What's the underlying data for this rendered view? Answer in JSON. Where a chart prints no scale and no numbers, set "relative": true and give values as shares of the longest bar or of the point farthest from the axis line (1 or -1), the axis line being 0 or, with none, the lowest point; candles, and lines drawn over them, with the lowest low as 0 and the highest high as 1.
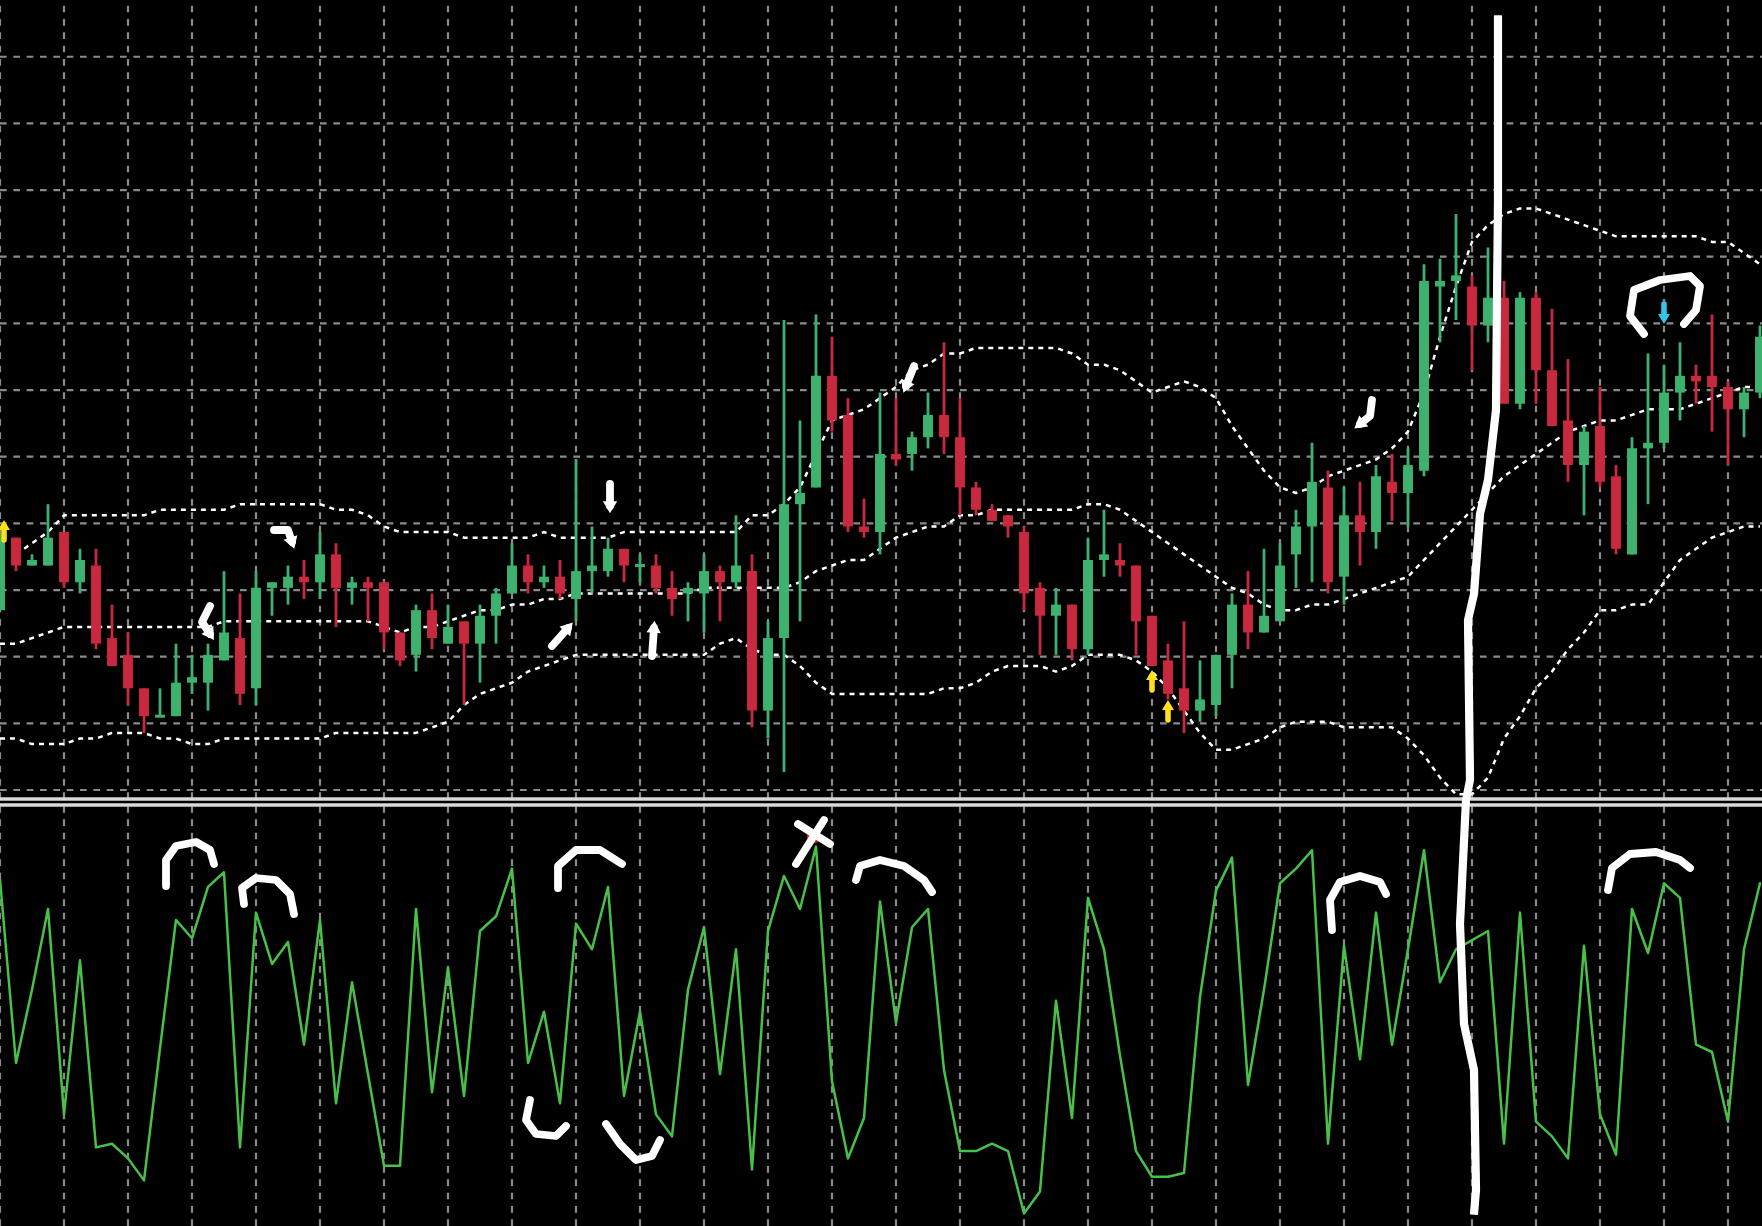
{
  "chart_data": [
    {
      "type": "candlestick",
      "relative": true,
      "grid": true,
      "categories": [
        null,
        null,
        null,
        null,
        null,
        null,
        null,
        null,
        null,
        null,
        null,
        null,
        null,
        null,
        null,
        null,
        null,
        null,
        null,
        null,
        null,
        null,
        null,
        null,
        null,
        null,
        null,
        null,
        null,
        null,
        null,
        null,
        null,
        null,
        null,
        null,
        null,
        null,
        null,
        null,
        null,
        null,
        null,
        null,
        null,
        null,
        null,
        null,
        null,
        null,
        null,
        null,
        null,
        null,
        null,
        null,
        null,
        null,
        null,
        null,
        null,
        null,
        null,
        null,
        null,
        null,
        null,
        null,
        null,
        null,
        null,
        null,
        null,
        null,
        null,
        null,
        null,
        null,
        null,
        null,
        null,
        null,
        null,
        null,
        null,
        null,
        null,
        null,
        null,
        null,
        null,
        null,
        null,
        null,
        null,
        null,
        null,
        null,
        null,
        null,
        null,
        null,
        null,
        null,
        null,
        null,
        null,
        null,
        null,
        null,
        null
      ],
      "ohlc": [
        [
          0.29,
          0.43,
          0.29,
          0.42
        ],
        [
          0.42,
          0.42,
          0.36,
          0.37
        ],
        [
          0.37,
          0.39,
          0.37,
          0.38
        ],
        [
          0.37,
          0.48,
          0.37,
          0.42
        ],
        [
          0.43,
          0.43,
          0.33,
          0.34
        ],
        [
          0.34,
          0.4,
          0.32,
          0.38
        ],
        [
          0.37,
          0.4,
          0.22,
          0.23
        ],
        [
          0.24,
          0.3,
          0.19,
          0.19
        ],
        [
          0.21,
          0.25,
          0.12,
          0.15
        ],
        [
          0.15,
          0.15,
          0.07,
          0.1
        ],
        [
          0.1,
          0.15,
          0.1,
          0.1
        ],
        [
          0.1,
          0.23,
          0.1,
          0.16
        ],
        [
          0.16,
          0.21,
          0.14,
          0.17
        ],
        [
          0.16,
          0.23,
          0.11,
          0.21
        ],
        [
          0.2,
          0.36,
          0.2,
          0.25
        ],
        [
          0.24,
          0.32,
          0.12,
          0.14
        ],
        [
          0.15,
          0.36,
          0.12,
          0.33
        ],
        [
          0.33,
          0.34,
          0.28,
          0.34
        ],
        [
          0.33,
          0.37,
          0.3,
          0.35
        ],
        [
          0.35,
          0.38,
          0.31,
          0.34
        ],
        [
          0.34,
          0.43,
          0.31,
          0.39
        ],
        [
          0.39,
          0.41,
          0.26,
          0.33
        ],
        [
          0.33,
          0.35,
          0.3,
          0.34
        ],
        [
          0.34,
          0.35,
          0.27,
          0.33
        ],
        [
          0.34,
          0.34,
          0.22,
          0.25
        ],
        [
          0.25,
          0.25,
          0.19,
          0.2
        ],
        [
          0.21,
          0.3,
          0.18,
          0.29
        ],
        [
          0.29,
          0.32,
          0.22,
          0.24
        ],
        [
          0.23,
          0.3,
          0.23,
          0.26
        ],
        [
          0.27,
          0.27,
          0.12,
          0.23
        ],
        [
          0.23,
          0.3,
          0.16,
          0.28
        ],
        [
          0.28,
          0.33,
          0.23,
          0.32
        ],
        [
          0.32,
          0.41,
          0.32,
          0.37
        ],
        [
          0.37,
          0.39,
          0.32,
          0.34
        ],
        [
          0.34,
          0.37,
          0.33,
          0.35
        ],
        [
          0.35,
          0.38,
          0.31,
          0.32
        ],
        [
          0.31,
          0.56,
          0.27,
          0.36
        ],
        [
          0.36,
          0.44,
          0.32,
          0.37
        ],
        [
          0.36,
          0.42,
          0.35,
          0.4
        ],
        [
          0.4,
          0.4,
          0.34,
          0.37
        ],
        [
          0.37,
          0.39,
          0.34,
          0.37
        ],
        [
          0.37,
          0.39,
          0.32,
          0.33
        ],
        [
          0.33,
          0.36,
          0.28,
          0.31
        ],
        [
          0.32,
          0.34,
          0.27,
          0.33
        ],
        [
          0.32,
          0.39,
          0.25,
          0.36
        ],
        [
          0.36,
          0.37,
          0.27,
          0.34
        ],
        [
          0.34,
          0.46,
          0.33,
          0.37
        ],
        [
          0.36,
          0.39,
          0.08,
          0.11
        ],
        [
          0.11,
          0.27,
          0.06,
          0.24
        ],
        [
          0.24,
          0.81,
          0.0,
          0.48
        ],
        [
          0.48,
          0.63,
          0.27,
          0.5
        ],
        [
          0.51,
          0.82,
          0.51,
          0.71
        ],
        [
          0.71,
          0.78,
          0.61,
          0.63
        ],
        [
          0.64,
          0.67,
          0.43,
          0.44
        ],
        [
          0.44,
          0.49,
          0.42,
          0.43
        ],
        [
          0.43,
          0.68,
          0.39,
          0.57
        ],
        [
          0.57,
          0.67,
          0.55,
          0.56
        ],
        [
          0.57,
          0.61,
          0.54,
          0.6
        ],
        [
          0.6,
          0.68,
          0.58,
          0.64
        ],
        [
          0.64,
          0.77,
          0.57,
          0.6
        ],
        [
          0.6,
          0.67,
          0.46,
          0.51
        ],
        [
          0.51,
          0.52,
          0.46,
          0.47
        ],
        [
          0.47,
          0.48,
          0.45,
          0.45
        ],
        [
          0.46,
          0.46,
          0.42,
          0.44
        ],
        [
          0.43,
          0.44,
          0.29,
          0.32
        ],
        [
          0.33,
          0.34,
          0.21,
          0.28
        ],
        [
          0.28,
          0.33,
          0.21,
          0.3
        ],
        [
          0.3,
          0.3,
          0.2,
          0.22
        ],
        [
          0.22,
          0.42,
          0.21,
          0.38
        ],
        [
          0.38,
          0.47,
          0.35,
          0.39
        ],
        [
          0.38,
          0.41,
          0.35,
          0.37
        ],
        [
          0.37,
          0.37,
          0.21,
          0.27
        ],
        [
          0.28,
          0.28,
          0.19,
          0.19
        ],
        [
          0.2,
          0.23,
          0.13,
          0.14
        ],
        [
          0.15,
          0.27,
          0.07,
          0.11
        ],
        [
          0.11,
          0.2,
          0.09,
          0.13
        ],
        [
          0.12,
          0.21,
          0.1,
          0.21
        ],
        [
          0.21,
          0.32,
          0.15,
          0.3
        ],
        [
          0.3,
          0.36,
          0.22,
          0.25
        ],
        [
          0.25,
          0.4,
          0.25,
          0.28
        ],
        [
          0.27,
          0.41,
          0.27,
          0.37
        ],
        [
          0.39,
          0.47,
          0.33,
          0.44
        ],
        [
          0.44,
          0.59,
          0.34,
          0.52
        ],
        [
          0.51,
          0.54,
          0.32,
          0.34
        ],
        [
          0.35,
          0.51,
          0.3,
          0.46
        ],
        [
          0.46,
          0.52,
          0.37,
          0.43
        ],
        [
          0.43,
          0.55,
          0.4,
          0.53
        ],
        [
          0.52,
          0.57,
          0.45,
          0.5
        ],
        [
          0.5,
          0.58,
          0.44,
          0.55
        ],
        [
          0.54,
          0.91,
          0.53,
          0.88
        ],
        [
          0.87,
          0.92,
          0.77,
          0.88
        ],
        [
          0.88,
          1.0,
          0.81,
          0.89
        ],
        [
          0.87,
          0.89,
          0.72,
          0.8
        ],
        [
          0.8,
          0.94,
          0.77,
          0.85
        ],
        [
          0.85,
          0.88,
          0.66,
          0.66
        ],
        [
          0.66,
          0.86,
          0.65,
          0.85
        ],
        [
          0.85,
          0.86,
          0.66,
          0.72
        ],
        [
          0.72,
          0.83,
          0.62,
          0.62
        ],
        [
          0.63,
          0.74,
          0.52,
          0.55
        ],
        [
          0.55,
          0.62,
          0.46,
          0.61
        ],
        [
          0.62,
          0.69,
          0.51,
          0.52
        ],
        [
          0.53,
          0.55,
          0.39,
          0.4
        ],
        [
          0.39,
          0.6,
          0.39,
          0.58
        ],
        [
          0.58,
          0.75,
          0.48,
          0.59
        ],
        [
          0.59,
          0.73,
          0.58,
          0.68
        ],
        [
          0.68,
          0.77,
          0.63,
          0.71
        ],
        [
          0.71,
          0.73,
          0.66,
          0.7
        ],
        [
          0.71,
          0.82,
          0.61,
          0.69
        ],
        [
          0.69,
          0.7,
          0.55,
          0.65
        ],
        [
          0.65,
          0.69,
          0.6,
          0.68
        ],
        [
          0.68,
          0.8,
          0.67,
          0.78
        ]
      ],
      "colors": [
        "#3db26f",
        "#c9283e",
        "#3db26f",
        "#3db26f",
        "#c9283e",
        "#3db26f",
        "#c9283e",
        "#c9283e",
        "#c9283e",
        "#c9283e",
        "#3db26f",
        "#3db26f",
        "#3db26f",
        "#3db26f",
        "#3db26f",
        "#c9283e",
        "#3db26f",
        "#3db26f",
        "#3db26f",
        "#c9283e",
        "#3db26f",
        "#c9283e",
        "#3db26f",
        "#c9283e",
        "#c9283e",
        "#c9283e",
        "#3db26f",
        "#c9283e",
        "#3db26f",
        "#c9283e",
        "#3db26f",
        "#3db26f",
        "#3db26f",
        "#c9283e",
        "#3db26f",
        "#c9283e",
        "#3db26f",
        "#3db26f",
        "#3db26f",
        "#c9283e",
        "#3db26f",
        "#c9283e",
        "#c9283e",
        "#3db26f",
        "#3db26f",
        "#c9283e",
        "#3db26f",
        "#c9283e",
        "#3db26f",
        "#3db26f",
        "#3db26f",
        "#3db26f",
        "#c9283e",
        "#c9283e",
        "#c9283e",
        "#3db26f",
        "#c9283e",
        "#3db26f",
        "#3db26f",
        "#c9283e",
        "#c9283e",
        "#c9283e",
        "#c9283e",
        "#c9283e",
        "#c9283e",
        "#c9283e",
        "#3db26f",
        "#c9283e",
        "#3db26f",
        "#3db26f",
        "#c9283e",
        "#c9283e",
        "#c9283e",
        "#c9283e",
        "#c9283e",
        "#3db26f",
        "#3db26f",
        "#3db26f",
        "#c9283e",
        "#3db26f",
        "#3db26f",
        "#3db26f",
        "#3db26f",
        "#c9283e",
        "#3db26f",
        "#c9283e",
        "#3db26f",
        "#c9283e",
        "#3db26f",
        "#3db26f",
        "#3db26f",
        "#3db26f",
        "#c9283e",
        "#3db26f",
        "#c9283e",
        "#3db26f",
        "#c9283e",
        "#c9283e",
        "#c9283e",
        "#3db26f",
        "#c9283e",
        "#c9283e",
        "#3db26f",
        "#3db26f",
        "#3db26f",
        "#3db26f",
        "#c9283e",
        "#c9283e",
        "#c9283e",
        "#3db26f",
        "#3db26f"
      ],
      "series": [
        {
          "type": "line",
          "color": "#ffffff",
          "line_style": "dotted",
          "values": [
            null,
            0.39,
            0.41,
            0.43,
            0.46,
            0.46,
            0.46,
            0.46,
            0.46,
            0.46,
            0.47,
            0.47,
            0.47,
            0.47,
            0.47,
            0.48,
            0.48,
            0.48,
            0.48,
            0.48,
            0.48,
            0.47,
            0.47,
            0.46,
            0.44,
            0.43,
            0.43,
            0.43,
            0.43,
            0.42,
            0.42,
            0.42,
            0.42,
            0.42,
            0.43,
            0.42,
            0.42,
            0.42,
            0.42,
            0.43,
            0.43,
            0.43,
            0.43,
            0.43,
            0.43,
            0.43,
            0.43,
            0.46,
            0.46,
            0.48,
            0.51,
            null,
            0.63,
            0.64,
            0.65,
            0.67,
            0.69,
            0.72,
            0.73,
            0.75,
            0.75,
            0.76,
            0.76,
            0.76,
            0.76,
            0.76,
            0.76,
            0.75,
            0.73,
            0.73,
            0.72,
            0.7,
            0.68,
            0.69,
            0.7,
            0.69,
            0.67,
            0.62,
            0.58,
            0.54,
            0.51,
            0.5,
            0.51,
            0.53,
            0.54,
            0.55,
            0.56,
            0.58,
            0.61,
            0.68,
            0.78,
            0.87,
            0.95,
            0.98,
            1.0,
            1.01,
            1.01,
            1.0,
            0.99,
            0.98,
            0.97,
            0.96,
            0.96,
            0.96,
            0.96,
            0.96,
            0.96,
            0.95,
            0.95,
            0.93,
            0.91
          ]
        },
        {
          "type": "line",
          "color": "#ffffff",
          "line_style": "dotted",
          "values": [
            0.23,
            0.23,
            0.24,
            0.25,
            0.26,
            0.26,
            0.26,
            0.26,
            0.26,
            0.26,
            0.26,
            0.26,
            0.26,
            0.26,
            0.27,
            0.27,
            0.27,
            0.27,
            0.27,
            0.27,
            0.27,
            0.27,
            0.27,
            0.27,
            0.26,
            0.25,
            0.26,
            0.26,
            0.27,
            0.28,
            0.29,
            0.29,
            0.3,
            0.3,
            0.31,
            0.31,
            0.32,
            0.32,
            0.32,
            0.32,
            0.32,
            0.32,
            0.32,
            0.32,
            0.33,
            0.33,
            0.33,
            0.33,
            0.33,
            0.33,
            0.34,
            0.36,
            0.37,
            0.38,
            0.38,
            0.4,
            0.42,
            0.43,
            0.44,
            0.44,
            0.46,
            0.46,
            0.47,
            0.47,
            0.47,
            0.47,
            0.47,
            0.47,
            0.48,
            0.48,
            0.47,
            0.45,
            0.43,
            0.41,
            0.39,
            0.37,
            0.35,
            0.33,
            0.32,
            0.3,
            0.29,
            0.29,
            0.3,
            0.3,
            0.31,
            0.32,
            0.33,
            0.34,
            0.35,
            0.38,
            0.41,
            0.44,
            0.47,
            null,
            0.53,
            0.55,
            0.57,
            0.59,
            0.61,
            0.62,
            0.63,
            0.63,
            0.64,
            0.65,
            0.65,
            0.65,
            0.66,
            0.67,
            0.68,
            0.69,
            0.69
          ]
        },
        {
          "type": "line",
          "color": "#ffffff",
          "line_style": "dotted",
          "values": [
            0.06,
            0.06,
            0.05,
            0.05,
            0.05,
            0.06,
            0.06,
            0.07,
            0.07,
            0.07,
            0.06,
            0.06,
            0.05,
            0.05,
            0.06,
            0.06,
            0.06,
            0.06,
            0.06,
            0.06,
            0.06,
            0.07,
            0.07,
            0.07,
            0.07,
            0.07,
            0.07,
            0.08,
            0.09,
            0.12,
            0.14,
            0.15,
            0.16,
            0.18,
            0.19,
            0.2,
            0.21,
            0.21,
            0.21,
            0.21,
            0.21,
            0.21,
            0.21,
            0.21,
            0.21,
            0.23,
            0.24,
            0.22,
            0.21,
            0.21,
            0.19,
            0.16,
            0.14,
            0.14,
            0.14,
            0.14,
            0.14,
            0.14,
            0.14,
            0.15,
            0.15,
            0.16,
            0.18,
            0.19,
            0.19,
            0.19,
            0.18,
            0.19,
            0.21,
            0.21,
            0.21,
            0.2,
            0.18,
            0.15,
            0.11,
            0.07,
            0.04,
            0.04,
            0.05,
            0.06,
            0.08,
            0.09,
            0.09,
            0.09,
            0.08,
            0.08,
            0.08,
            0.08,
            0.06,
            0.03,
            -0.01,
            -0.04,
            -0.04,
            -0.01,
            0.06,
            0.1,
            0.15,
            0.18,
            0.22,
            0.25,
            0.29,
            0.29,
            0.3,
            0.3,
            0.34,
            0.38,
            0.4,
            0.42,
            0.43,
            0.44,
            0.44
          ]
        }
      ]
    },
    {
      "type": "line",
      "relative": true,
      "grid": "x",
      "categories": [
        null,
        null,
        null,
        null,
        null,
        null,
        null,
        null,
        null,
        null,
        null,
        null,
        null,
        null,
        null,
        null,
        null,
        null,
        null,
        null,
        null,
        null,
        null,
        null,
        null,
        null,
        null,
        null,
        null,
        null,
        null,
        null,
        null,
        null,
        null,
        null,
        null,
        null,
        null,
        null,
        null,
        null,
        null,
        null,
        null,
        null,
        null,
        null,
        null,
        null,
        null,
        null,
        null,
        null,
        null,
        null,
        null,
        null,
        null,
        null,
        null,
        null,
        null,
        null,
        null,
        null,
        null,
        null,
        null,
        null,
        null,
        null,
        null,
        null,
        null,
        null,
        null,
        null,
        null,
        null,
        null,
        null,
        null,
        null,
        null,
        null,
        null,
        null,
        null,
        null,
        null,
        null,
        null,
        null,
        null,
        null,
        null,
        null,
        null,
        null,
        null,
        null,
        null,
        null,
        null,
        null,
        null,
        null,
        null,
        null,
        null
      ],
      "series": [
        {
          "color": "#47c147",
          "values": [
            0.91,
            0.41,
            0.61,
            0.83,
            0.27,
            0.69,
            0.18,
            0.19,
            0.15,
            0.09,
            0.45,
            0.8,
            0.75,
            0.89,
            0.93,
            0.18,
            0.82,
            0.68,
            0.74,
            0.46,
            0.8,
            0.3,
            0.63,
            0.38,
            0.13,
            0.13,
            0.83,
            0.33,
            0.67,
            0.32,
            0.77,
            0.81,
            0.94,
            0.41,
            0.55,
            0.3,
            0.79,
            0.72,
            0.89,
            0.32,
            0.55,
            0.27,
            0.21,
            0.61,
            0.78,
            0.38,
            0.72,
            0.12,
            0.77,
            0.92,
            0.83,
            1.0,
            0.36,
            0.15,
            0.26,
            0.85,
            0.52,
            0.78,
            0.83,
            0.39,
            0.17,
            0.17,
            0.19,
            0.17,
            0.0,
            0.06,
            0.58,
            0.26,
            0.86,
            0.72,
            0.43,
            0.17,
            0.1,
            0.1,
            0.11,
            0.59,
            0.88,
            0.97,
            0.35,
            0.61,
            0.9,
            0.94,
            0.99,
            0.19,
            0.73,
            0.42,
            0.82,
            0.46,
            0.72,
            0.99,
            0.63,
            0.72,
            null,
            0.77,
            0.19,
            0.82,
            0.25,
            0.21,
            0.15,
            0.73,
            0.27,
            0.16,
            0.83,
            0.71,
            0.9,
            0.86,
            0.46,
            0.44,
            0.25,
            0.72,
            0.9
          ]
        }
      ]
    }
  ]
}
